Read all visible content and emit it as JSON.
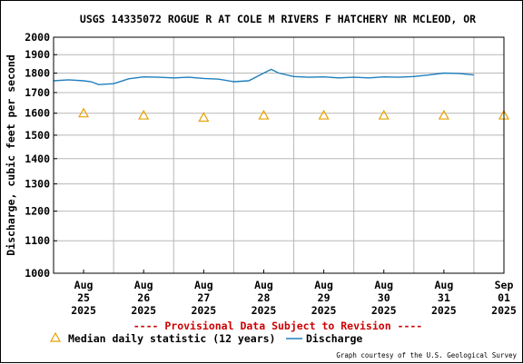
{
  "chart_data": {
    "type": "line",
    "title": "USGS 14335072 ROGUE R AT COLE M RIVERS F HATCHERY NR MCLEOD, OR",
    "ylabel": "Discharge, cubic feet per second",
    "xlabel": "",
    "ylim": [
      1000,
      2000
    ],
    "y_scale": "log",
    "y_ticks": [
      "2000",
      "1900",
      "1800",
      "1700",
      "1600",
      "1500",
      "1400",
      "1300",
      "1200",
      "1100",
      "1000"
    ],
    "x_ticks": [
      {
        "line1": "Aug",
        "line2": "25",
        "line3": "2025"
      },
      {
        "line1": "Aug",
        "line2": "26",
        "line3": "2025"
      },
      {
        "line1": "Aug",
        "line2": "27",
        "line3": "2025"
      },
      {
        "line1": "Aug",
        "line2": "28",
        "line3": "2025"
      },
      {
        "line1": "Aug",
        "line2": "29",
        "line3": "2025"
      },
      {
        "line1": "Aug",
        "line2": "30",
        "line3": "2025"
      },
      {
        "line1": "Aug",
        "line2": "31",
        "line3": "2025"
      },
      {
        "line1": "Sep",
        "line2": "01",
        "line3": "2025"
      }
    ],
    "x_range": [
      "2025-08-25 00:00",
      "2025-09-01 12:00"
    ],
    "grid": true,
    "legend_position": "bottom",
    "series": [
      {
        "name": "Discharge",
        "kind": "line",
        "color": "#1f7fbf",
        "points": [
          [
            "2025-08-25 00:00",
            1760
          ],
          [
            "2025-08-25 06:00",
            1765
          ],
          [
            "2025-08-25 12:00",
            1760
          ],
          [
            "2025-08-25 15:00",
            1755
          ],
          [
            "2025-08-25 18:00",
            1740
          ],
          [
            "2025-08-26 00:00",
            1745
          ],
          [
            "2025-08-26 06:00",
            1770
          ],
          [
            "2025-08-26 12:00",
            1780
          ],
          [
            "2025-08-26 18:00",
            1778
          ],
          [
            "2025-08-27 00:00",
            1775
          ],
          [
            "2025-08-27 06:00",
            1778
          ],
          [
            "2025-08-27 12:00",
            1772
          ],
          [
            "2025-08-27 18:00",
            1768
          ],
          [
            "2025-08-28 00:00",
            1755
          ],
          [
            "2025-08-28 06:00",
            1760
          ],
          [
            "2025-08-28 12:00",
            1800
          ],
          [
            "2025-08-28 15:00",
            1820
          ],
          [
            "2025-08-28 18:00",
            1800
          ],
          [
            "2025-08-29 00:00",
            1782
          ],
          [
            "2025-08-29 06:00",
            1778
          ],
          [
            "2025-08-29 12:00",
            1780
          ],
          [
            "2025-08-29 18:00",
            1775
          ],
          [
            "2025-08-30 00:00",
            1778
          ],
          [
            "2025-08-30 06:00",
            1775
          ],
          [
            "2025-08-30 12:00",
            1780
          ],
          [
            "2025-08-30 18:00",
            1778
          ],
          [
            "2025-08-31 00:00",
            1782
          ],
          [
            "2025-08-31 06:00",
            1790
          ],
          [
            "2025-08-31 12:00",
            1800
          ],
          [
            "2025-08-31 18:00",
            1798
          ],
          [
            "2025-09-01 00:00",
            1790
          ]
        ]
      },
      {
        "name": "Median daily statistic (12 years)",
        "kind": "marker",
        "marker": "triangle",
        "color": "#e8a000",
        "points": [
          [
            "2025-08-25 12:00",
            1600
          ],
          [
            "2025-08-26 12:00",
            1590
          ],
          [
            "2025-08-27 12:00",
            1580
          ],
          [
            "2025-08-28 12:00",
            1590
          ],
          [
            "2025-08-29 12:00",
            1590
          ],
          [
            "2025-08-30 12:00",
            1590
          ],
          [
            "2025-08-31 12:00",
            1590
          ],
          [
            "2025-09-01 12:00",
            1590
          ]
        ]
      }
    ]
  },
  "notices": {
    "provisional": "---- Provisional Data Subject to Revision ----",
    "provisional_color": "#cc0000",
    "credit": "Graph courtesy of the U.S. Geological Survey"
  },
  "legend": {
    "median_label": "Median daily statistic (12 years)",
    "discharge_label": "Discharge"
  }
}
